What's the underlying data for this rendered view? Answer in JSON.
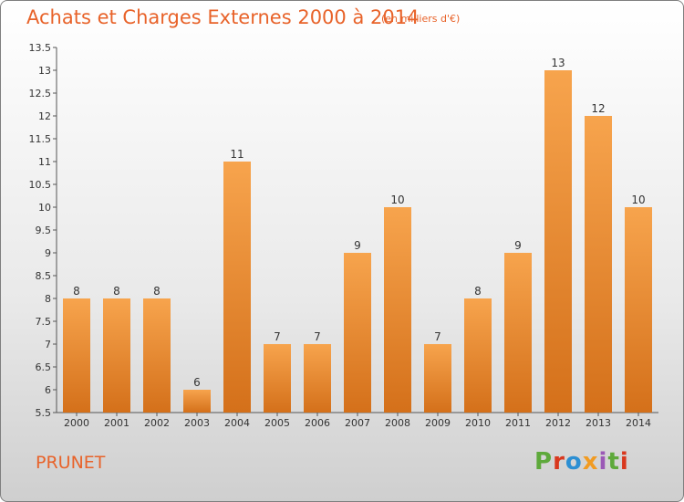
{
  "title": "Achats et Charges Externes 2000 à 2014",
  "subtitle": "(en milliers d'€)",
  "commune": "PRUNET",
  "logo": {
    "text": "Proxiti",
    "parts": [
      "P",
      "r",
      "o",
      "x",
      "i",
      "t",
      "i"
    ]
  },
  "colors": {
    "accent": "#e8632a",
    "bar_light": "#f7a44d",
    "bar_dark": "#d4701a"
  },
  "chart_data": {
    "type": "bar",
    "categories": [
      "2000",
      "2001",
      "2002",
      "2003",
      "2004",
      "2005",
      "2006",
      "2007",
      "2008",
      "2009",
      "2010",
      "2011",
      "2012",
      "2013",
      "2014"
    ],
    "values": [
      8,
      8,
      8,
      6,
      11,
      7,
      7,
      9,
      10,
      7,
      8,
      9,
      13,
      12,
      10
    ],
    "data_labels": [
      "8",
      "8",
      "8",
      "6",
      "11",
      "7",
      "7",
      "9",
      "10",
      "7",
      "8",
      "9",
      "13",
      "12",
      "10"
    ],
    "title": "Achats et Charges Externes 2000 à 2014",
    "subtitle": "(en milliers d'€)",
    "ylim": [
      5.5,
      13.5
    ],
    "yticks": [
      5.5,
      6,
      6.5,
      7,
      7.5,
      8,
      8.5,
      9,
      9.5,
      10,
      10.5,
      11,
      11.5,
      12,
      12.5,
      13,
      13.5
    ],
    "ytick_labels": [
      "5.5",
      "6",
      "6.5",
      "7",
      "7.5",
      "8",
      "8.5",
      "9",
      "9.5",
      "10",
      "10.5",
      "11",
      "11.5",
      "12",
      "12.5",
      "13",
      "13.5"
    ],
    "grid": false,
    "legend": "none"
  }
}
